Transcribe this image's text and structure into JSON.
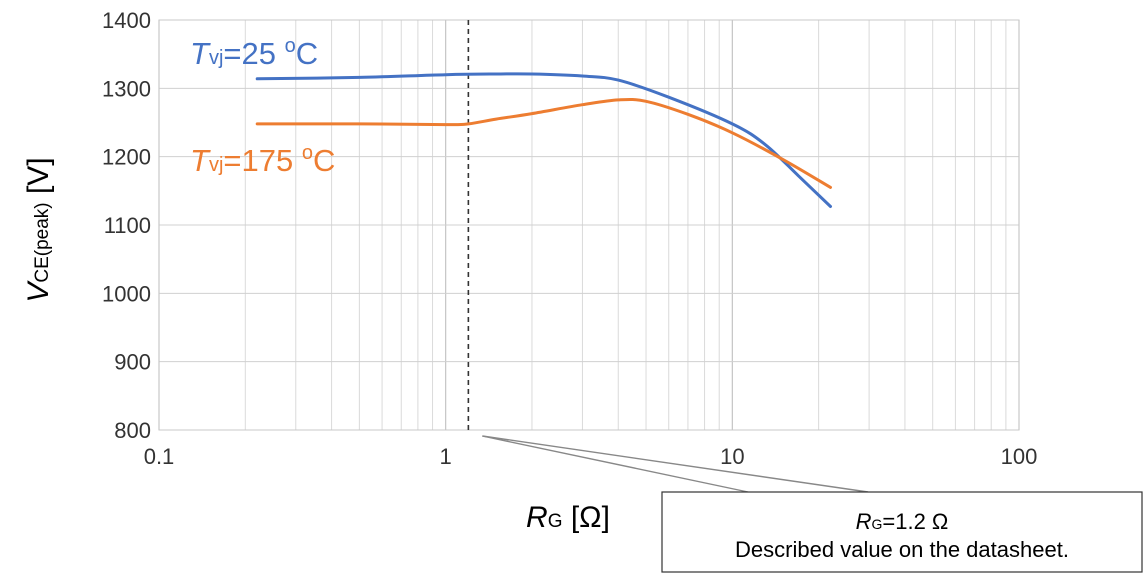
{
  "chart_data": {
    "type": "line",
    "x_scale": "log",
    "xlim": [
      0.1,
      100
    ],
    "ylim": [
      800,
      1400
    ],
    "grid": true,
    "x_ticks": [
      "0.1",
      "1",
      "10",
      "100"
    ],
    "y_ticks": [
      "800",
      "900",
      "1000",
      "1100",
      "1200",
      "1300",
      "1400"
    ],
    "xlabel": {
      "main": "R",
      "sub": "G",
      "unit": " [Ω]"
    },
    "ylabel": {
      "main": "V",
      "sub": "CE(peak)",
      "unit": " [V]"
    },
    "reference_line": {
      "x": 1.2,
      "style": "dashed"
    },
    "series": [
      {
        "name": {
          "main": "T",
          "sub": "vj",
          "rest": "=25 ",
          "sup": "o",
          "unit": "C"
        },
        "color": "#4472C4",
        "points": [
          [
            0.22,
            1314
          ],
          [
            0.5,
            1316
          ],
          [
            1.0,
            1320
          ],
          [
            1.5,
            1321
          ],
          [
            2.0,
            1321
          ],
          [
            3.0,
            1318
          ],
          [
            4.0,
            1312
          ],
          [
            6.0,
            1287
          ],
          [
            10.0,
            1248
          ],
          [
            13.0,
            1218
          ],
          [
            17.0,
            1172
          ],
          [
            22.0,
            1127
          ]
        ]
      },
      {
        "name": {
          "main": "T",
          "sub": "vj",
          "rest": "=175 ",
          "sup": "o",
          "unit": "C"
        },
        "color": "#ED7D31",
        "points": [
          [
            0.22,
            1248
          ],
          [
            0.5,
            1248
          ],
          [
            1.0,
            1247
          ],
          [
            1.2,
            1248
          ],
          [
            1.5,
            1255
          ],
          [
            2.0,
            1263
          ],
          [
            3.0,
            1276
          ],
          [
            4.0,
            1283
          ],
          [
            5.0,
            1281
          ],
          [
            7.0,
            1262
          ],
          [
            10.0,
            1235
          ],
          [
            15.0,
            1196
          ],
          [
            22.0,
            1155
          ]
        ]
      }
    ],
    "annotation": {
      "line1_main": "R",
      "line1_sub": "G",
      "line1_rest": "=1.2 Ω",
      "line2": "Described value on the datasheet."
    }
  }
}
